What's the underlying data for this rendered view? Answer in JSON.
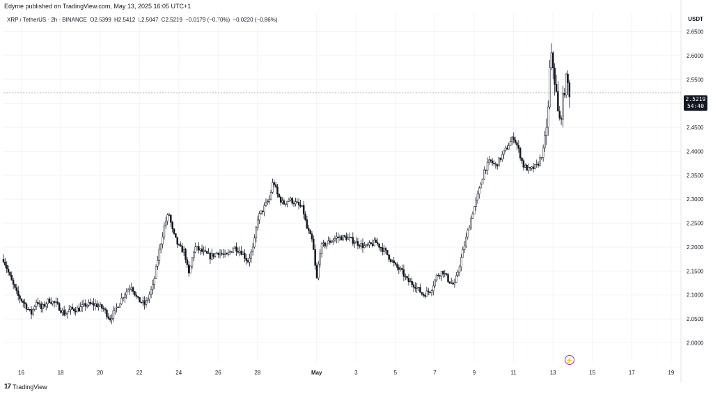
{
  "publish_line": "Edyme published on TradingView.com, May 13, 2025 16:05 UTC+1",
  "ohlc": {
    "symbol": "XRP / TetherUS · 2h · BINANCE",
    "open": "O2.5399",
    "high": "H2.5412",
    "low": "L2.5047",
    "close": "C2.5219",
    "change": "−0.0179 (−0.70%)",
    "change2": "−0.0220 (−0.86%)"
  },
  "currency": "USDT",
  "last_price": {
    "price": "2.5219",
    "countdown": "54:40"
  },
  "footer": {
    "brand": "TradingView",
    "logo": "tradingview-logo"
  },
  "icons": {
    "event": "lightning-icon"
  },
  "colors": {
    "candle": "#131722",
    "grid": "#f0f3fa",
    "price_line": "#787b86"
  },
  "chart_data": {
    "type": "candlestick",
    "y_axis": {
      "range": [
        1.96,
        2.69
      ],
      "ticks": [
        "2.0000",
        "2.0500",
        "2.1000",
        "2.1500",
        "2.2000",
        "2.2500",
        "2.3000",
        "2.3500",
        "2.4000",
        "2.4500",
        "2.5000",
        "2.5500",
        "2.6000",
        "2.6500"
      ],
      "position": "right"
    },
    "x_axis": {
      "ticks": [
        "16",
        "18",
        "20",
        "22",
        "24",
        "26",
        "28",
        "May",
        "3",
        "5",
        "7",
        "9",
        "11",
        "13",
        "15",
        "17",
        "19"
      ],
      "tick_days": [
        16,
        18,
        20,
        22,
        24,
        26,
        28,
        31,
        33,
        35,
        37,
        39,
        41,
        43,
        45,
        47,
        49
      ],
      "day_range": [
        15.1,
        49.5
      ],
      "note_days": "April 16 = 16; May 1 = 31"
    },
    "candle_interval_days": 0.0833,
    "current_price": 2.5219,
    "grid": true,
    "anchors": [
      [
        15.1,
        2.175
      ],
      [
        15.5,
        2.13
      ],
      [
        15.8,
        2.1
      ],
      [
        16.2,
        2.08
      ],
      [
        16.5,
        2.06
      ],
      [
        16.8,
        2.09
      ],
      [
        17.0,
        2.07
      ],
      [
        17.4,
        2.09
      ],
      [
        17.8,
        2.08
      ],
      [
        18.2,
        2.06
      ],
      [
        18.5,
        2.07
      ],
      [
        18.9,
        2.07
      ],
      [
        19.3,
        2.08
      ],
      [
        19.8,
        2.08
      ],
      [
        20.2,
        2.07
      ],
      [
        20.5,
        2.05
      ],
      [
        20.8,
        2.07
      ],
      [
        21.2,
        2.1
      ],
      [
        21.6,
        2.12
      ],
      [
        21.9,
        2.09
      ],
      [
        22.3,
        2.08
      ],
      [
        22.7,
        2.12
      ],
      [
        23.0,
        2.19
      ],
      [
        23.3,
        2.25
      ],
      [
        23.5,
        2.27
      ],
      [
        23.7,
        2.23
      ],
      [
        24.0,
        2.2
      ],
      [
        24.3,
        2.19
      ],
      [
        24.5,
        2.14
      ],
      [
        24.8,
        2.2
      ],
      [
        25.2,
        2.19
      ],
      [
        25.6,
        2.18
      ],
      [
        26.0,
        2.19
      ],
      [
        26.4,
        2.18
      ],
      [
        26.8,
        2.2
      ],
      [
        27.2,
        2.19
      ],
      [
        27.5,
        2.17
      ],
      [
        27.8,
        2.2
      ],
      [
        28.0,
        2.26
      ],
      [
        28.3,
        2.28
      ],
      [
        28.6,
        2.3
      ],
      [
        28.8,
        2.34
      ],
      [
        29.0,
        2.31
      ],
      [
        29.3,
        2.29
      ],
      [
        29.6,
        2.3
      ],
      [
        30.0,
        2.29
      ],
      [
        30.3,
        2.28
      ],
      [
        30.5,
        2.24
      ],
      [
        30.8,
        2.21
      ],
      [
        31.0,
        2.13
      ],
      [
        31.2,
        2.2
      ],
      [
        31.6,
        2.21
      ],
      [
        32.0,
        2.22
      ],
      [
        32.5,
        2.22
      ],
      [
        33.0,
        2.21
      ],
      [
        33.5,
        2.2
      ],
      [
        34.0,
        2.21
      ],
      [
        34.5,
        2.19
      ],
      [
        35.0,
        2.16
      ],
      [
        35.3,
        2.15
      ],
      [
        35.6,
        2.13
      ],
      [
        36.0,
        2.12
      ],
      [
        36.4,
        2.1
      ],
      [
        36.8,
        2.11
      ],
      [
        37.1,
        2.14
      ],
      [
        37.4,
        2.15
      ],
      [
        37.7,
        2.13
      ],
      [
        38.0,
        2.12
      ],
      [
        38.3,
        2.17
      ],
      [
        38.6,
        2.22
      ],
      [
        38.9,
        2.27
      ],
      [
        39.2,
        2.31
      ],
      [
        39.5,
        2.36
      ],
      [
        39.8,
        2.38
      ],
      [
        40.1,
        2.37
      ],
      [
        40.4,
        2.39
      ],
      [
        40.7,
        2.41
      ],
      [
        41.0,
        2.43
      ],
      [
        41.2,
        2.41
      ],
      [
        41.5,
        2.37
      ],
      [
        41.8,
        2.36
      ],
      [
        42.2,
        2.37
      ],
      [
        42.5,
        2.4
      ],
      [
        42.75,
        2.48
      ],
      [
        42.85,
        2.58
      ],
      [
        42.95,
        2.6
      ],
      [
        43.05,
        2.56
      ],
      [
        43.15,
        2.53
      ],
      [
        43.25,
        2.48
      ],
      [
        43.35,
        2.46
      ],
      [
        43.45,
        2.49
      ],
      [
        43.55,
        2.52
      ],
      [
        43.65,
        2.55
      ],
      [
        43.75,
        2.54
      ],
      [
        43.85,
        2.522
      ]
    ]
  }
}
